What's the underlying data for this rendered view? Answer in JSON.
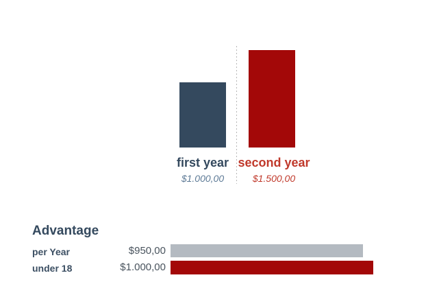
{
  "colors": {
    "first_year_bar": "#34495e",
    "second_year_bar": "#a30808",
    "first_year_label": "#34495e",
    "first_year_value": "#5d7a96",
    "second_year_label": "#c0392b",
    "second_year_value": "#c0392b",
    "divider_dots": "#b6b6b6",
    "advantage_heading": "#34495e",
    "row_label": "#3c4f63",
    "row_value": "#4a545e",
    "per_year_bar": "#b4bac1",
    "under_18_bar": "#a30808",
    "background": "#ffffff"
  },
  "comparison_chart": {
    "bars": [
      {
        "label": "first year",
        "value_text": "$1.000,00",
        "value": 1000
      },
      {
        "label": "second year",
        "value_text": "$1.500,00",
        "value": 1500
      }
    ]
  },
  "advantage": {
    "heading": "Advantage",
    "rows": [
      {
        "label": "per Year",
        "value_text": "$950,00",
        "value": 950
      },
      {
        "label": "under 18",
        "value_text": "$1.000,00",
        "value": 1000
      }
    ]
  },
  "chart_data": [
    {
      "type": "bar",
      "title": "",
      "xlabel": "",
      "ylabel": "",
      "categories": [
        "first year",
        "second year"
      ],
      "values": [
        1000,
        1500
      ],
      "value_labels": [
        "$1.000,00",
        "$1.500,00"
      ],
      "ylim": [
        0,
        1500
      ],
      "grid": false,
      "legend": false,
      "colors": [
        "#34495e",
        "#a30808"
      ],
      "notes": "two vertical bars separated by a dotted divider, value labels under category names"
    },
    {
      "type": "bar",
      "orientation": "horizontal",
      "title": "Advantage",
      "xlabel": "",
      "ylabel": "",
      "categories": [
        "per Year",
        "under 18"
      ],
      "values": [
        950,
        1000
      ],
      "value_labels": [
        "$950,00",
        "$1.000,00"
      ],
      "xlim": [
        0,
        1000
      ],
      "grid": false,
      "legend": false,
      "colors": [
        "#b4bac1",
        "#a30808"
      ]
    }
  ]
}
